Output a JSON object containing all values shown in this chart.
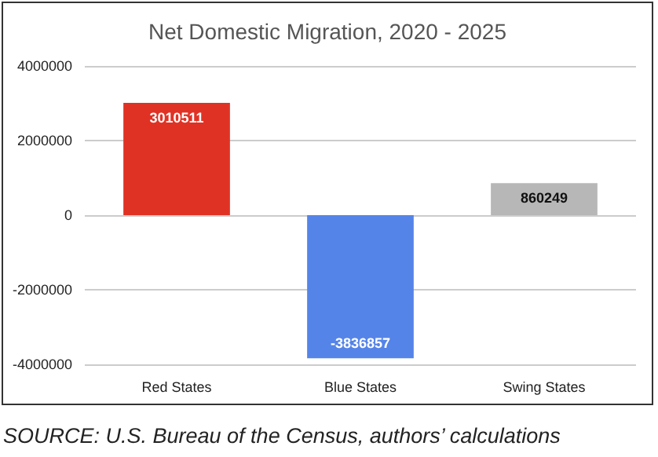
{
  "chart_data": {
    "type": "bar",
    "title": "Net Domestic Migration, 2020 - 2025",
    "categories": [
      "Red States",
      "Blue States",
      "Swing States"
    ],
    "values": [
      3010511,
      -3836857,
      860249
    ],
    "colors": [
      "#e03224",
      "#5584e8",
      "#b7b7b7"
    ],
    "ylim": [
      -4000000,
      4000000
    ],
    "yticks": [
      -4000000,
      -2000000,
      0,
      2000000,
      4000000
    ],
    "grid": "y",
    "data_labels": true,
    "annotations": [
      "SOURCE: U.S. Bureau of the Census, authors’ calculations"
    ]
  }
}
